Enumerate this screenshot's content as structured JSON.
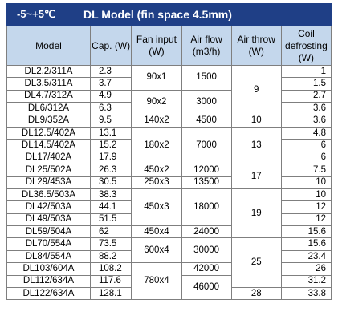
{
  "title": {
    "range": "-5~+5℃",
    "model": "DL Model (fin space 4.5mm)"
  },
  "headers": {
    "model": "Model",
    "cap": "Cap. (W)",
    "fan": "Fan input (W)",
    "airflow": "Air flow (m3/h)",
    "throw": "Air throw (W)",
    "defrost": "Coil defrosting (W)"
  },
  "rows": [
    {
      "model": "DL2.2/311A",
      "cap": "2.3",
      "defrost": "1"
    },
    {
      "model": "DL3.5/311A",
      "cap": "3.7",
      "defrost": "1.5"
    },
    {
      "model": "DL4.7/312A",
      "cap": "4.9",
      "defrost": "2.7"
    },
    {
      "model": "DL6/312A",
      "cap": "6.3",
      "defrost": "3.6"
    },
    {
      "model": "DL9/352A",
      "cap": "9.5",
      "defrost": "3.6"
    },
    {
      "model": "DL12.5/402A",
      "cap": "13.1",
      "defrost": "4.8"
    },
    {
      "model": "DL14.5/402A",
      "cap": "15.2",
      "defrost": "6"
    },
    {
      "model": "DL17/402A",
      "cap": "17.9",
      "defrost": "6"
    },
    {
      "model": "DL25/502A",
      "cap": "26.3",
      "defrost": "7.5"
    },
    {
      "model": "DL29/453A",
      "cap": "30.5",
      "defrost": "10"
    },
    {
      "model": "DL36.5/503A",
      "cap": "38.3",
      "defrost": "10"
    },
    {
      "model": "DL42/503A",
      "cap": "44.1",
      "defrost": "12"
    },
    {
      "model": "DL49/503A",
      "cap": "51.5",
      "defrost": "12"
    },
    {
      "model": "DL59/504A",
      "cap": "62",
      "defrost": "15.6"
    },
    {
      "model": "DL70/554A",
      "cap": "73.5",
      "defrost": "15.6"
    },
    {
      "model": "DL84/554A",
      "cap": "88.2",
      "defrost": "23.4"
    },
    {
      "model": "DL103/604A",
      "cap": "108.2",
      "defrost": "26"
    },
    {
      "model": "DL112/634A",
      "cap": "117.6",
      "defrost": "31.2"
    },
    {
      "model": "DL122/634A",
      "cap": "128.1",
      "defrost": "33.8"
    }
  ],
  "fan_groups": [
    "90x1",
    "90x2",
    "140x2",
    "180x2",
    "450x2",
    "250x3",
    "450x3",
    "450x4",
    "600x4",
    "780x4"
  ],
  "airflow_groups": [
    "1500",
    "3000",
    "4500",
    "7000",
    "12000",
    "13500",
    "18000",
    "24000",
    "30000",
    "42000",
    "46000"
  ],
  "throw_groups": [
    "9",
    "10",
    "13",
    "17",
    "19",
    "25",
    "28"
  ]
}
